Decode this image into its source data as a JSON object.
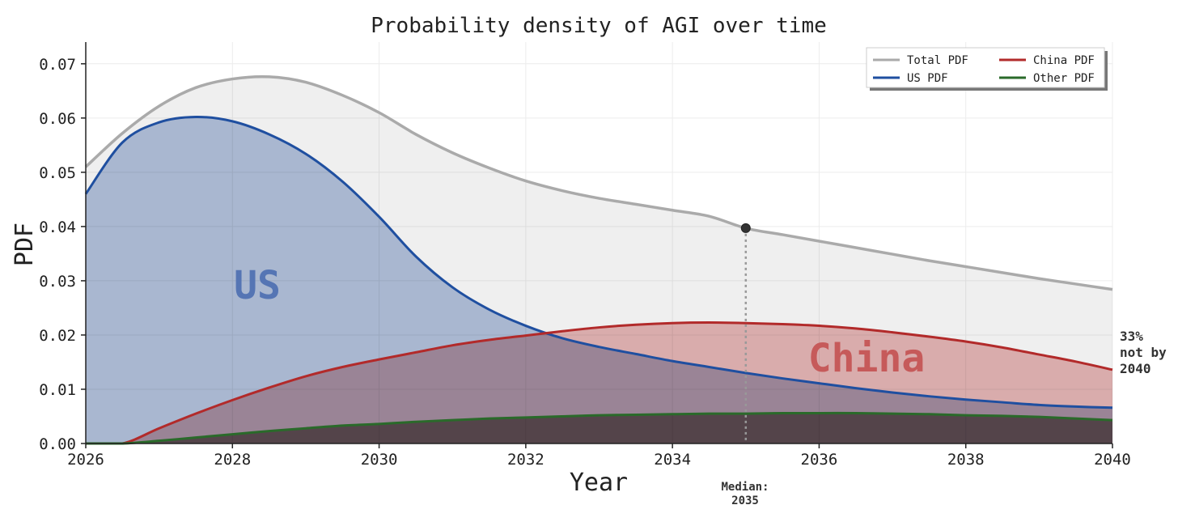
{
  "chart_data": {
    "type": "area",
    "title": "Probability density of AGI over time",
    "xlabel": "Year",
    "ylabel": "PDF",
    "xlim": [
      2026,
      2040
    ],
    "ylim": [
      0,
      0.074
    ],
    "x_ticks": [
      "2026",
      "2028",
      "2030",
      "2032",
      "2034",
      "2036",
      "2038",
      "2040"
    ],
    "y_ticks": [
      "0.00",
      "0.01",
      "0.02",
      "0.03",
      "0.04",
      "0.05",
      "0.06",
      "0.07"
    ],
    "grid": true,
    "legend_position": "top-right",
    "x": [
      2026,
      2026.5,
      2027,
      2027.5,
      2028,
      2028.5,
      2029,
      2029.5,
      2030,
      2030.5,
      2031,
      2031.5,
      2032,
      2032.5,
      2033,
      2033.5,
      2034,
      2034.5,
      2035,
      2035.5,
      2036,
      2036.5,
      2037,
      2037.5,
      2038,
      2038.5,
      2039,
      2039.5,
      2040
    ],
    "series": [
      {
        "name": "Total PDF",
        "color": "#aaaaaa",
        "fill": "#efefef",
        "values": [
          0.051,
          0.0572,
          0.0622,
          0.0656,
          0.0672,
          0.0676,
          0.0666,
          0.0642,
          0.061,
          0.057,
          0.0536,
          0.0508,
          0.0484,
          0.0466,
          0.0452,
          0.0441,
          0.043,
          0.0419,
          0.0397,
          0.0385,
          0.0373,
          0.0361,
          0.0349,
          0.0337,
          0.0326,
          0.0315,
          0.0304,
          0.0294,
          0.0284
        ]
      },
      {
        "name": "US PDF",
        "color": "#1f4fa0",
        "fill": "#b4c3de",
        "values": [
          0.046,
          0.0555,
          0.0592,
          0.0602,
          0.0594,
          0.057,
          0.0534,
          0.0483,
          0.0418,
          0.0345,
          0.0288,
          0.0247,
          0.0217,
          0.0194,
          0.0178,
          0.0165,
          0.0152,
          0.0141,
          0.013,
          0.012,
          0.0111,
          0.0102,
          0.0094,
          0.0087,
          0.0081,
          0.0076,
          0.0071,
          0.0068,
          0.0066
        ]
      },
      {
        "name": "China PDF",
        "color": "#b22a2a",
        "fill": "#e8b8b8",
        "values": [
          0.0,
          0.0,
          0.0028,
          0.0055,
          0.008,
          0.0103,
          0.0124,
          0.0141,
          0.0155,
          0.0168,
          0.0181,
          0.0191,
          0.0199,
          0.0207,
          0.0214,
          0.0219,
          0.0222,
          0.0223,
          0.0222,
          0.022,
          0.0217,
          0.0212,
          0.0205,
          0.0197,
          0.0188,
          0.0177,
          0.0164,
          0.0151,
          0.0136
        ]
      },
      {
        "name": "Other PDF",
        "color": "#2a6a2a",
        "fill": "#8a827e",
        "values": [
          0.0,
          0.0,
          0.0005,
          0.0011,
          0.0017,
          0.0023,
          0.0028,
          0.0033,
          0.0036,
          0.004,
          0.0043,
          0.0046,
          0.0048,
          0.005,
          0.0052,
          0.0053,
          0.0054,
          0.0055,
          0.0055,
          0.0056,
          0.0056,
          0.0056,
          0.0055,
          0.0054,
          0.0052,
          0.0051,
          0.0049,
          0.0046,
          0.0043
        ]
      }
    ],
    "annotations": {
      "us_label": "US",
      "china_label": "China",
      "median_label_line1": "Median:",
      "median_label_line2": "2035",
      "median_x": 2035,
      "median_y": 0.0397,
      "note_line1": "33%",
      "note_line2": "not by",
      "note_line3": "2040"
    }
  }
}
